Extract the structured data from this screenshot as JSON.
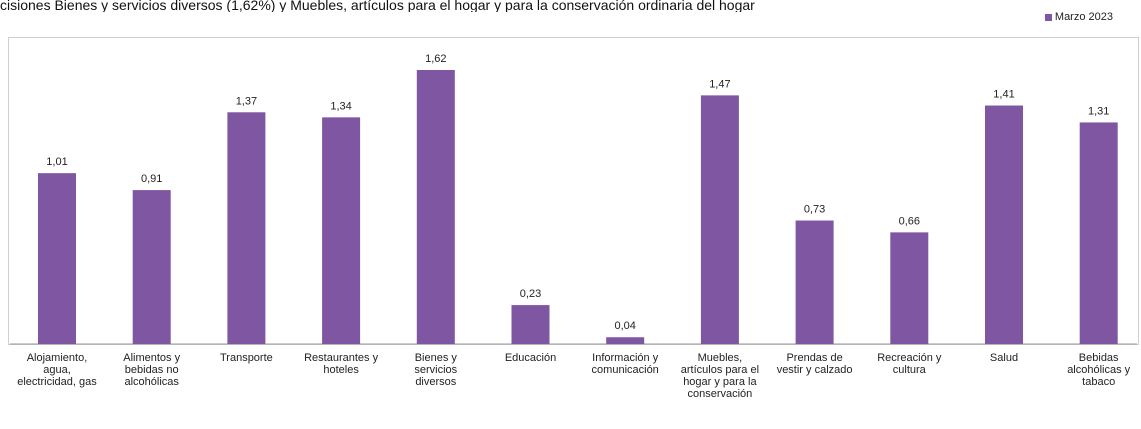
{
  "caption": "cisiones Bienes y servicios diversos (1,62%) y Muebles, artículos para el hogar y para la conservación ordinaria del hogar",
  "chart_data": {
    "type": "bar",
    "categories": [
      "Alojamiento, agua, electricidad, gas",
      "Alimentos y bebidas no alcohólicas",
      "Transporte",
      "Restaurantes y hoteles",
      "Bienes y servicios diversos",
      "Educación",
      "Información y comunicación",
      "Muebles, artículos para el hogar y para la conservación",
      "Prendas de vestir y calzado",
      "Recreación y cultura",
      "Salud",
      "Bebidas alcohólicas y tabaco"
    ],
    "series": [
      {
        "name": "Marzo 2023",
        "values": [
          1.01,
          0.91,
          1.37,
          1.34,
          1.62,
          0.23,
          0.04,
          1.47,
          0.73,
          0.66,
          1.41,
          1.31
        ]
      }
    ],
    "value_labels": [
      "1,01",
      "0,91",
      "1,37",
      "1,34",
      "1,62",
      "0,23",
      "0,04",
      "1,47",
      "0,73",
      "0,66",
      "1,41",
      "1,31"
    ],
    "ylim": [
      0,
      1.62
    ],
    "grid": false,
    "legend_position": "top-right",
    "bar_color": "#7f56a2"
  }
}
